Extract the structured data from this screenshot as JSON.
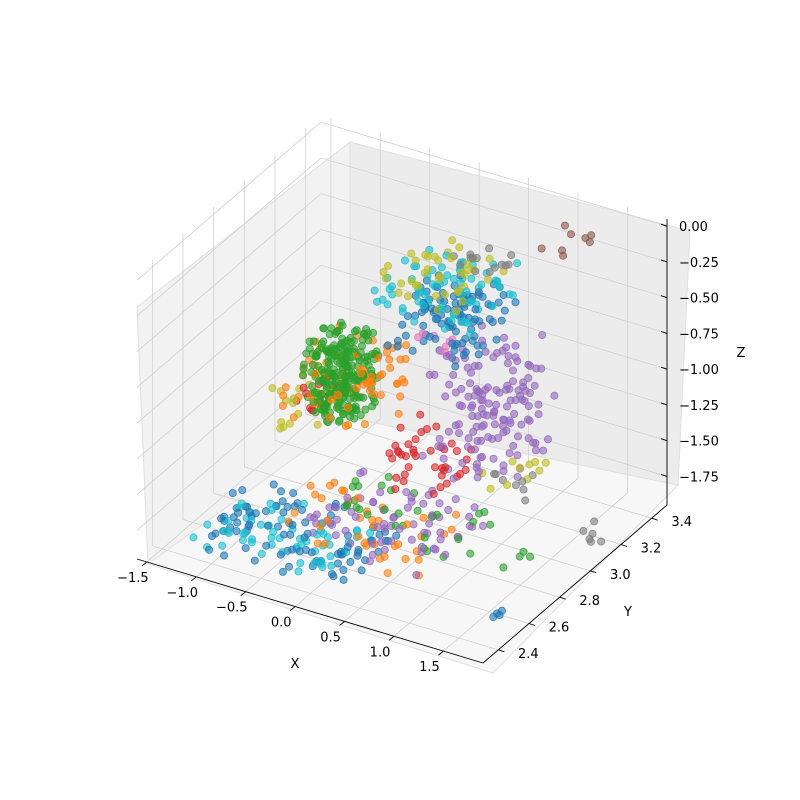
{
  "chart_data": {
    "type": "scatter",
    "title": "",
    "xlabel": "X",
    "ylabel": "Y",
    "zlabel": "Z",
    "xlim": [
      -1.6,
      1.9
    ],
    "ylim": [
      2.3,
      3.5
    ],
    "zlim": [
      -1.95,
      0.05
    ],
    "x_ticks": [
      "−1.5",
      "−1.0",
      "−0.5",
      "0.0",
      "0.5",
      "1.0",
      "1.5"
    ],
    "x_tick_values": [
      -1.5,
      -1.0,
      -0.5,
      0.0,
      0.5,
      1.0,
      1.5
    ],
    "y_ticks": [
      "2.4",
      "2.6",
      "2.8",
      "3.0",
      "3.2",
      "3.4"
    ],
    "y_tick_values": [
      2.4,
      2.6,
      2.8,
      3.0,
      3.2,
      3.4
    ],
    "z_ticks": [
      "0.00",
      "−0.25",
      "−0.50",
      "−0.75",
      "−1.00",
      "−1.25",
      "−1.50",
      "−1.75"
    ],
    "z_tick_values": [
      0.0,
      -0.25,
      -0.5,
      -0.75,
      -1.0,
      -1.25,
      -1.5,
      -1.75
    ],
    "grid": true,
    "palette": [
      "#1f77b4",
      "#ff7f0e",
      "#2ca02c",
      "#d62728",
      "#9467bd",
      "#8c564b",
      "#e377c2",
      "#7f7f7f",
      "#bcbd22",
      "#17becf"
    ],
    "series": [
      {
        "color": "#8c564b",
        "clusters": [
          {
            "x": [
              1.0,
              1.4
            ],
            "y": [
              3.15,
              3.4
            ],
            "z": [
              -0.05,
              -0.05
            ],
            "n": 8
          }
        ]
      },
      {
        "color": "#7f7f7f",
        "clusters": [
          {
            "x": [
              0.25,
              0.75
            ],
            "y": [
              3.1,
              3.35
            ],
            "z": [
              -0.25,
              -0.25
            ],
            "n": 14
          },
          {
            "x": [
              1.7,
              1.85
            ],
            "y": [
              3.0,
              3.2
            ],
            "z": [
              -1.9,
              -1.7
            ],
            "n": 6
          },
          {
            "x": [
              1.0,
              1.4
            ],
            "y": [
              2.8,
              3.0
            ],
            "z": [
              -1.5,
              -1.3
            ],
            "n": 8
          }
        ]
      },
      {
        "color": "#bcbd22",
        "clusters": [
          {
            "x": [
              -0.2,
              0.7
            ],
            "y": [
              2.9,
              3.3
            ],
            "z": [
              -0.35,
              -0.25
            ],
            "n": 40
          },
          {
            "x": [
              -0.9,
              -0.5
            ],
            "y": [
              2.7,
              3.0
            ],
            "z": [
              -1.3,
              -1.0
            ],
            "n": 30
          },
          {
            "x": [
              1.0,
              1.4
            ],
            "y": [
              2.8,
              3.1
            ],
            "z": [
              -1.45,
              -1.3
            ],
            "n": 10
          }
        ]
      },
      {
        "color": "#17becf",
        "clusters": [
          {
            "x": [
              -0.2,
              0.8
            ],
            "y": [
              2.9,
              3.3
            ],
            "z": [
              -0.5,
              -0.3
            ],
            "n": 70
          },
          {
            "x": [
              -1.2,
              0.2
            ],
            "y": [
              2.4,
              2.7
            ],
            "z": [
              -1.9,
              -1.7
            ],
            "n": 60
          }
        ]
      },
      {
        "color": "#1f77b4",
        "clusters": [
          {
            "x": [
              0.0,
              0.8
            ],
            "y": [
              2.9,
              3.25
            ],
            "z": [
              -0.7,
              -0.4
            ],
            "n": 100
          },
          {
            "x": [
              -1.2,
              0.4
            ],
            "y": [
              2.4,
              2.8
            ],
            "z": [
              -1.9,
              -1.7
            ],
            "n": 90
          },
          {
            "x": [
              1.55,
              1.65
            ],
            "y": [
              2.55,
              2.6
            ],
            "z": [
              -1.95,
              -1.9
            ],
            "n": 4
          }
        ]
      },
      {
        "color": "#9467bd",
        "clusters": [
          {
            "x": [
              0.5,
              1.3
            ],
            "y": [
              2.8,
              3.2
            ],
            "z": [
              -1.4,
              -0.6
            ],
            "n": 140
          },
          {
            "x": [
              -0.3,
              1.1
            ],
            "y": [
              2.5,
              2.9
            ],
            "z": [
              -1.75,
              -1.55
            ],
            "n": 70
          }
        ]
      },
      {
        "color": "#ff7f0e",
        "clusters": [
          {
            "x": [
              -0.8,
              0.1
            ],
            "y": [
              2.7,
              3.1
            ],
            "z": [
              -1.15,
              -0.8
            ],
            "n": 70
          },
          {
            "x": [
              -0.6,
              0.9
            ],
            "y": [
              2.5,
              2.85
            ],
            "z": [
              -1.8,
              -1.6
            ],
            "n": 40
          }
        ]
      },
      {
        "color": "#d62728",
        "clusters": [
          {
            "x": [
              -0.8,
              -0.6
            ],
            "y": [
              2.8,
              3.0
            ],
            "z": [
              -1.3,
              -1.05
            ],
            "n": 12
          },
          {
            "x": [
              0.1,
              0.8
            ],
            "y": [
              2.7,
              3.0
            ],
            "z": [
              -1.5,
              -1.2
            ],
            "n": 40
          }
        ]
      },
      {
        "color": "#2ca02c",
        "clusters": [
          {
            "x": [
              -0.7,
              -0.2
            ],
            "y": [
              2.75,
              3.0
            ],
            "z": [
              -1.2,
              -0.7
            ],
            "n": 260
          },
          {
            "x": [
              -0.2,
              1.2
            ],
            "y": [
              2.6,
              2.9
            ],
            "z": [
              -1.75,
              -1.55
            ],
            "n": 30
          },
          {
            "x": [
              1.35,
              1.55
            ],
            "y": [
              2.75,
              2.9
            ],
            "z": [
              -1.85,
              -1.75
            ],
            "n": 4
          }
        ]
      },
      {
        "color": "#e377c2",
        "clusters": [
          {
            "x": [
              0.2,
              0.6
            ],
            "y": [
              2.9,
              3.0
            ],
            "z": [
              -0.65,
              -0.55
            ],
            "n": 8
          }
        ]
      }
    ]
  }
}
